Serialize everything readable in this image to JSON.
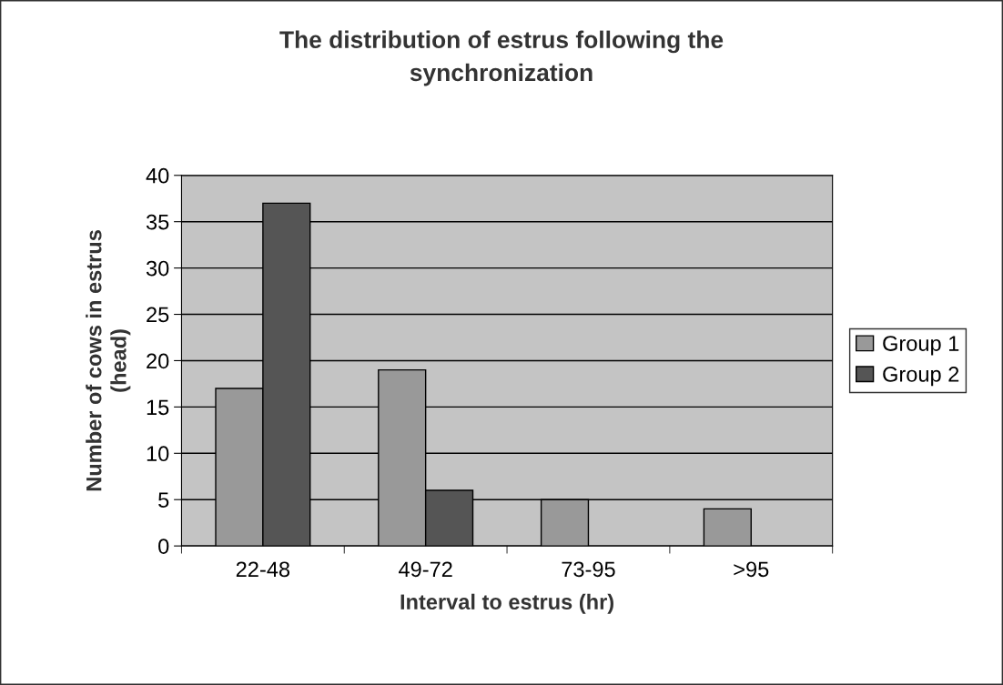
{
  "chart_data": {
    "type": "bar",
    "title": "The distribution of estrus following the synchronization",
    "xlabel": "Interval to estrus (hr)",
    "ylabel": "Number of cows in estrus (head)",
    "categories": [
      "22-48",
      "49-72",
      "73-95",
      ">95"
    ],
    "series": [
      {
        "name": "Group 1",
        "color": "#999999",
        "values": [
          17,
          19,
          5,
          4
        ]
      },
      {
        "name": "Group 2",
        "color": "#555555",
        "values": [
          37,
          6,
          null,
          null
        ]
      }
    ],
    "ylim": [
      0,
      40
    ],
    "yticks": [
      0,
      5,
      10,
      15,
      20,
      25,
      30,
      35,
      40
    ],
    "grid": "y",
    "legend": "right"
  }
}
